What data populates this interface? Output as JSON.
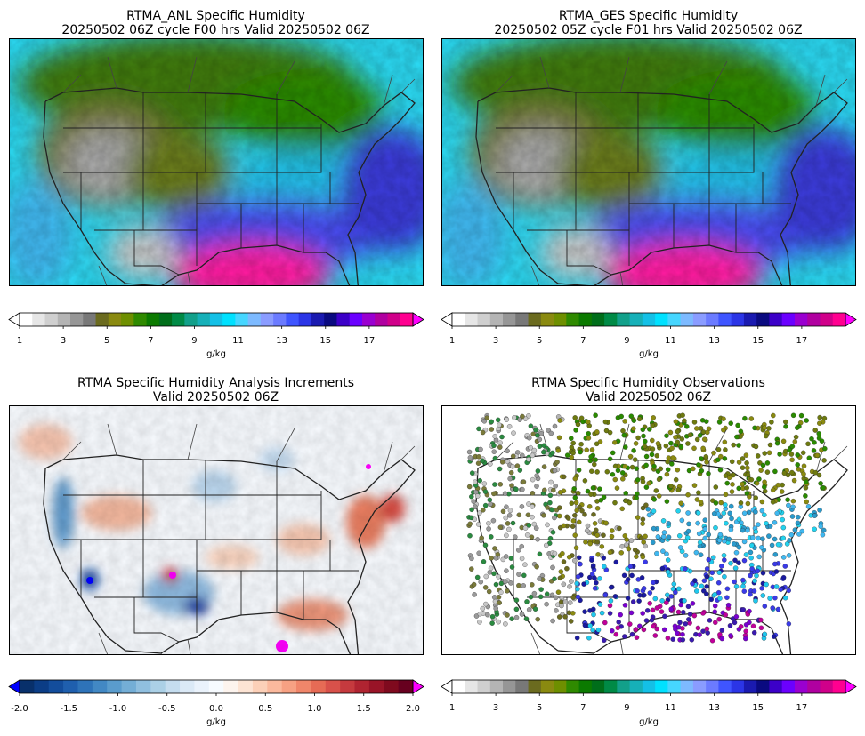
{
  "panels": {
    "anl": {
      "title_line1": "RTMA_ANL Specific Humidity",
      "title_line2": "20250502 06Z cycle F00 hrs Valid 20250502 06Z"
    },
    "ges": {
      "title_line1": "RTMA_GES Specific Humidity",
      "title_line2": "20250502 05Z cycle F01 hrs Valid 20250502 06Z"
    },
    "inc": {
      "title_line1": "RTMA Specific Humidity Analysis Increments",
      "title_line2": "Valid 20250502 06Z"
    },
    "obs": {
      "title_line1": "RTMA Specific Humidity Observations",
      "title_line2": "Valid 20250502 06Z"
    }
  },
  "colorbars": {
    "humidity": {
      "ticks": [
        "1",
        "3",
        "5",
        "7",
        "9",
        "11",
        "13",
        "15",
        "17"
      ],
      "unit": "g/kg",
      "colors": [
        "#ffffff",
        "#e6e6e6",
        "#cfcfcf",
        "#b4b4b4",
        "#969696",
        "#787878",
        "#6b6b1f",
        "#8a8a10",
        "#6e8f00",
        "#2f8a00",
        "#0b7a00",
        "#006e1a",
        "#008a46",
        "#12a08a",
        "#16b0b8",
        "#14c0e6",
        "#00e1ff",
        "#46d6ff",
        "#7dbaff",
        "#8a9cff",
        "#6b7bff",
        "#3f55ff",
        "#2b35e6",
        "#1a1ab0",
        "#0a0a80",
        "#3c00c8",
        "#6b00ff",
        "#9a00d0",
        "#b000a0",
        "#d0008a",
        "#ff0090"
      ],
      "min_color": "#ffffff",
      "max_color": "#ff00ff"
    },
    "increment": {
      "ticks": [
        "-2.0",
        "-1.5",
        "-1.0",
        "-0.5",
        "0.0",
        "0.5",
        "1.0",
        "1.5",
        "2.0"
      ],
      "unit": "g/kg",
      "colors": [
        "#08306b",
        "#0b3d86",
        "#134d9c",
        "#1f5fae",
        "#2e73b9",
        "#4288c4",
        "#5a9ccd",
        "#74aed6",
        "#90bfdf",
        "#abd0e6",
        "#c5ddef",
        "#dbe9f6",
        "#eaf2fb",
        "#f7fbff",
        "#fdf4ee",
        "#fde4d4",
        "#fcd0b8",
        "#fbb99d",
        "#f7a183",
        "#f0866a",
        "#e66b55",
        "#d8514a",
        "#c53a3e",
        "#b02431",
        "#991427",
        "#7f0a1e",
        "#67001f"
      ],
      "min_color": "#0000ff",
      "max_color": "#ff00ff"
    }
  }
}
